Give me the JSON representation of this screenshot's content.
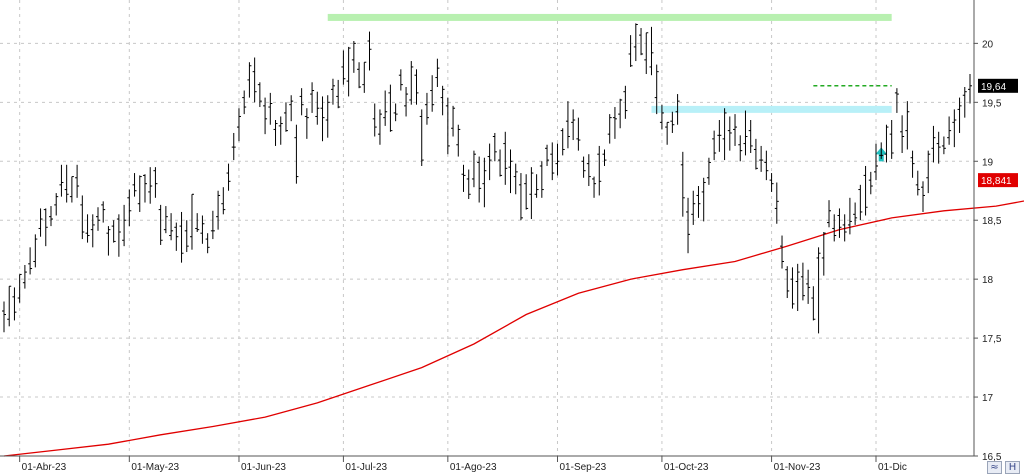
{
  "chart_data": {
    "type": "ohlc-bar",
    "title": "",
    "xlabel": "",
    "ylabel": "",
    "ylim": [
      16.5,
      20.3
    ],
    "y_ticks": [
      "16,5",
      "17",
      "17,5",
      "18",
      "18,5",
      "19",
      "19,5",
      "20"
    ],
    "y_tick_values": [
      16.5,
      17,
      17.5,
      18,
      18.5,
      19,
      19.5,
      20
    ],
    "x_ticks": [
      "01-Abr-23",
      "01-May-23",
      "01-Jun-23",
      "01-Jul-23",
      "01-Ago-23",
      "01-Sep-23",
      "01-Oct-23",
      "01-Nov-23",
      "01-Dic"
    ],
    "x_tick_index": [
      3,
      24,
      45,
      65,
      85,
      106,
      126,
      147,
      167
    ],
    "grid": true,
    "colors": {
      "price": "#000000",
      "moving_average": "#e00000",
      "resistance": "#b8f0b0",
      "support": "#b8f0f8",
      "last_price_tag": "#000000",
      "ma_tag": "#e00000",
      "arrow": "#20c0c0"
    },
    "price_tag": "19,64",
    "ma_tag": "18,841",
    "annotations": [
      {
        "kind": "horizontal-band",
        "color": "#b8f0b0",
        "y": 20.22,
        "from_index": 62,
        "to_index": 170
      },
      {
        "kind": "horizontal-band",
        "color": "#b8f0f8",
        "y": 19.44,
        "from_index": 124,
        "to_index": 170
      },
      {
        "kind": "dashed-line",
        "color": "#22aa22",
        "y": 19.64,
        "from_index": 155,
        "to_index": 170
      },
      {
        "kind": "up-arrow",
        "color": "#20c0c0",
        "index": 168,
        "y": 19.05
      }
    ],
    "ohlc": [
      [
        17.73,
        17.81,
        17.55,
        17.7
      ],
      [
        17.66,
        17.94,
        17.6,
        17.94
      ],
      [
        17.85,
        17.93,
        17.65,
        17.72
      ],
      [
        17.84,
        18.04,
        17.8,
        18.04
      ],
      [
        17.97,
        18.12,
        17.92,
        18.06
      ],
      [
        18.13,
        18.27,
        18.04,
        18.09
      ],
      [
        18.15,
        18.38,
        18.1,
        18.34
      ],
      [
        18.43,
        18.6,
        18.36,
        18.51
      ],
      [
        18.59,
        18.6,
        18.28,
        18.44
      ],
      [
        18.53,
        18.62,
        18.45,
        18.51
      ],
      [
        18.63,
        18.73,
        18.54,
        18.7
      ],
      [
        18.8,
        18.97,
        18.7,
        18.82
      ],
      [
        18.76,
        18.97,
        18.65,
        18.72
      ],
      [
        18.7,
        18.87,
        18.65,
        18.87
      ],
      [
        18.86,
        18.97,
        18.69,
        18.79
      ],
      [
        18.63,
        18.71,
        18.34,
        18.4
      ],
      [
        18.39,
        18.55,
        18.31,
        18.37
      ],
      [
        18.42,
        18.55,
        18.27,
        18.46
      ],
      [
        18.53,
        18.61,
        18.41,
        18.5
      ],
      [
        18.63,
        18.66,
        18.48,
        18.59
      ],
      [
        18.39,
        18.45,
        18.2,
        18.42
      ],
      [
        18.45,
        18.5,
        18.31,
        18.32
      ],
      [
        18.51,
        18.55,
        18.19,
        18.4
      ],
      [
        18.33,
        18.63,
        18.28,
        18.5
      ],
      [
        18.69,
        18.76,
        18.45,
        18.58
      ],
      [
        18.8,
        18.9,
        18.7,
        18.75
      ],
      [
        18.64,
        18.88,
        18.57,
        18.87
      ],
      [
        18.88,
        18.89,
        18.65,
        18.81
      ],
      [
        18.74,
        18.95,
        18.64,
        18.79
      ],
      [
        18.92,
        18.95,
        18.69,
        18.81
      ],
      [
        18.59,
        18.63,
        18.29,
        18.33
      ],
      [
        18.42,
        18.62,
        18.39,
        18.53
      ],
      [
        18.37,
        18.56,
        18.33,
        18.41
      ],
      [
        18.44,
        18.48,
        18.24,
        18.36
      ],
      [
        18.45,
        18.57,
        18.14,
        18.22
      ],
      [
        18.41,
        18.5,
        18.23,
        18.28
      ],
      [
        18.36,
        18.72,
        18.25,
        18.72
      ],
      [
        18.43,
        18.56,
        18.4,
        18.42
      ],
      [
        18.39,
        18.54,
        18.3,
        18.47
      ],
      [
        18.34,
        18.39,
        18.22,
        18.27
      ],
      [
        18.41,
        18.58,
        18.34,
        18.41
      ],
      [
        18.53,
        18.75,
        18.42,
        18.71
      ],
      [
        18.64,
        18.78,
        18.55,
        18.59
      ],
      [
        18.9,
        18.98,
        18.75,
        18.83
      ],
      [
        19.12,
        19.24,
        19.01,
        19.12
      ],
      [
        19.29,
        19.45,
        19.17,
        19.38
      ],
      [
        19.54,
        19.6,
        19.4,
        19.46
      ],
      [
        19.69,
        19.84,
        19.54,
        19.81
      ],
      [
        19.76,
        19.88,
        19.5,
        19.59
      ],
      [
        19.65,
        19.67,
        19.46,
        19.51
      ],
      [
        19.47,
        19.54,
        19.23,
        19.36
      ],
      [
        19.46,
        19.58,
        19.31,
        19.49
      ],
      [
        19.27,
        19.35,
        19.13,
        19.32
      ],
      [
        19.3,
        19.38,
        19.14,
        19.32
      ],
      [
        19.41,
        19.5,
        19.25,
        19.26
      ],
      [
        19.48,
        19.56,
        19.34,
        19.51
      ],
      [
        19.2,
        19.31,
        18.81,
        18.87
      ],
      [
        19.55,
        19.62,
        19.39,
        19.48
      ],
      [
        19.38,
        19.45,
        19.19,
        19.37
      ],
      [
        19.57,
        19.67,
        19.41,
        19.6
      ],
      [
        19.38,
        19.59,
        19.31,
        19.45
      ],
      [
        19.45,
        19.55,
        19.17,
        19.37
      ],
      [
        19.35,
        19.56,
        19.2,
        19.5
      ],
      [
        19.61,
        19.7,
        19.48,
        19.64
      ],
      [
        19.55,
        19.69,
        19.45,
        19.46
      ],
      [
        19.8,
        19.94,
        19.65,
        19.7
      ],
      [
        19.68,
        19.97,
        19.55,
        19.96
      ],
      [
        19.86,
        20.02,
        19.75,
        20.0
      ],
      [
        19.78,
        19.84,
        19.62,
        19.63
      ],
      [
        19.65,
        19.84,
        19.58,
        19.84
      ],
      [
        20.02,
        20.1,
        19.77,
        19.95
      ],
      [
        19.36,
        19.49,
        19.21,
        19.29
      ],
      [
        19.23,
        19.44,
        19.14,
        19.4
      ],
      [
        19.37,
        19.6,
        19.3,
        19.42
      ],
      [
        19.58,
        19.65,
        19.25,
        19.26
      ],
      [
        19.41,
        19.49,
        19.34,
        19.4
      ],
      [
        19.73,
        19.78,
        19.6,
        19.65
      ],
      [
        19.47,
        19.63,
        19.38,
        19.57
      ],
      [
        19.52,
        19.85,
        19.48,
        19.8
      ],
      [
        19.73,
        19.78,
        19.48,
        19.58
      ],
      [
        19.38,
        19.44,
        18.96,
        19.01
      ],
      [
        19.48,
        19.58,
        19.31,
        19.37
      ],
      [
        19.6,
        19.73,
        19.42,
        19.48
      ],
      [
        19.71,
        19.87,
        19.63,
        19.79
      ],
      [
        19.54,
        19.64,
        19.39,
        19.61
      ],
      [
        19.47,
        19.54,
        19.06,
        19.13
      ],
      [
        19.28,
        19.47,
        19.21,
        19.45
      ],
      [
        19.14,
        19.31,
        19.04,
        19.27
      ],
      [
        18.89,
        18.97,
        18.74,
        18.88
      ],
      [
        18.85,
        18.93,
        18.68,
        18.72
      ],
      [
        18.85,
        19.09,
        18.78,
        19.06
      ],
      [
        18.99,
        19.04,
        18.65,
        18.77
      ],
      [
        18.81,
        19.03,
        18.61,
        18.92
      ],
      [
        19.04,
        19.15,
        18.84,
        19.01
      ],
      [
        19.21,
        19.24,
        19.0,
        19.08
      ],
      [
        19.01,
        19.1,
        18.87,
        18.88
      ],
      [
        19.15,
        19.25,
        18.8,
        18.94
      ],
      [
        18.95,
        19.1,
        18.73,
        19.0
      ],
      [
        18.87,
        18.98,
        18.72,
        18.91
      ],
      [
        18.8,
        18.9,
        18.5,
        18.52
      ],
      [
        18.81,
        18.89,
        18.59,
        18.6
      ],
      [
        18.72,
        18.95,
        18.51,
        18.9
      ],
      [
        18.72,
        18.89,
        18.69,
        18.76
      ],
      [
        18.96,
        19.0,
        18.69,
        18.76
      ],
      [
        19.11,
        19.14,
        18.96,
        19.01
      ],
      [
        19.06,
        19.16,
        18.84,
        18.9
      ],
      [
        18.98,
        19.15,
        18.88,
        19.0
      ],
      [
        19.26,
        19.28,
        19.05,
        19.1
      ],
      [
        19.34,
        19.51,
        19.11,
        19.21
      ],
      [
        19.33,
        19.44,
        19.18,
        19.35
      ],
      [
        19.19,
        19.37,
        19.09,
        19.18
      ],
      [
        19.0,
        19.04,
        18.86,
        18.92
      ],
      [
        18.98,
        19.06,
        18.79,
        18.87
      ],
      [
        18.85,
        18.87,
        18.69,
        18.81
      ],
      [
        19.06,
        19.13,
        18.71,
        18.83
      ],
      [
        19.06,
        19.1,
        18.96,
        19.01
      ],
      [
        19.23,
        19.4,
        19.15,
        19.37
      ],
      [
        19.37,
        19.46,
        19.19,
        19.36
      ],
      [
        19.4,
        19.53,
        19.28,
        19.52
      ],
      [
        19.59,
        19.64,
        19.36,
        19.43
      ],
      [
        19.91,
        20.07,
        19.8,
        19.81
      ],
      [
        19.97,
        20.17,
        19.85,
        20.16
      ],
      [
        20.07,
        20.13,
        19.9,
        19.91
      ],
      [
        19.86,
        20.09,
        19.74,
        20.09
      ],
      [
        19.8,
        20.14,
        19.73,
        19.92
      ],
      [
        19.54,
        19.82,
        19.4,
        19.76
      ],
      [
        19.33,
        19.48,
        19.27,
        19.41
      ],
      [
        19.29,
        19.33,
        19.14,
        19.33
      ],
      [
        19.34,
        19.42,
        19.24,
        19.31
      ],
      [
        19.42,
        19.57,
        19.31,
        19.51
      ],
      [
        18.97,
        19.08,
        18.53,
        18.69
      ],
      [
        18.57,
        18.69,
        18.22,
        18.38
      ],
      [
        18.55,
        18.75,
        18.46,
        18.64
      ],
      [
        18.71,
        18.79,
        18.52,
        18.64
      ],
      [
        18.74,
        18.86,
        18.49,
        18.82
      ],
      [
        18.86,
        19.03,
        18.8,
        18.99
      ],
      [
        19.19,
        19.26,
        19.01,
        19.07
      ],
      [
        19.22,
        19.35,
        19.08,
        19.22
      ],
      [
        19.19,
        19.45,
        19.01,
        19.41
      ],
      [
        19.26,
        19.38,
        19.09,
        19.24
      ],
      [
        19.27,
        19.4,
        19.13,
        19.29
      ],
      [
        19.14,
        19.22,
        19.0,
        19.09
      ],
      [
        19.15,
        19.43,
        19.05,
        19.21
      ],
      [
        19.26,
        19.35,
        19.07,
        19.13
      ],
      [
        19.1,
        19.19,
        18.93,
        18.94
      ],
      [
        19.01,
        19.13,
        18.91,
        19.01
      ],
      [
        18.99,
        19.09,
        18.84,
        18.92
      ],
      [
        18.84,
        18.9,
        18.74,
        18.81
      ],
      [
        18.6,
        18.82,
        18.47,
        18.66
      ],
      [
        18.28,
        18.37,
        18.09,
        18.15
      ],
      [
        18.08,
        18.11,
        17.84,
        17.9
      ],
      [
        18.0,
        18.1,
        17.75,
        17.79
      ],
      [
        17.98,
        18.13,
        17.73,
        18.06
      ],
      [
        18.02,
        18.14,
        17.82,
        17.86
      ],
      [
        17.96,
        18.08,
        17.79,
        17.93
      ],
      [
        17.84,
        17.94,
        17.65,
        17.66
      ],
      [
        18.18,
        18.27,
        17.54,
        18.22
      ],
      [
        18.18,
        18.4,
        18.03,
        18.39
      ],
      [
        18.48,
        18.67,
        18.44,
        18.58
      ],
      [
        18.43,
        18.55,
        18.32,
        18.37
      ],
      [
        18.54,
        18.6,
        18.35,
        18.44
      ],
      [
        18.46,
        18.55,
        18.32,
        18.4
      ],
      [
        18.46,
        18.69,
        18.38,
        18.49
      ],
      [
        18.55,
        18.65,
        18.46,
        18.52
      ],
      [
        18.76,
        18.8,
        18.5,
        18.57
      ],
      [
        18.88,
        18.96,
        18.54,
        18.61
      ],
      [
        18.84,
        18.91,
        18.72,
        18.79
      ],
      [
        18.91,
        19.15,
        18.84,
        18.96
      ],
      [
        19.05,
        19.16,
        19.02,
        19.05
      ],
      [
        19.06,
        19.31,
        18.99,
        19.29
      ],
      [
        19.23,
        19.35,
        19.02,
        19.07
      ],
      [
        19.58,
        19.62,
        19.41,
        19.57
      ],
      [
        19.25,
        19.39,
        19.07,
        19.21
      ],
      [
        19.26,
        19.51,
        19.1,
        19.42
      ],
      [
        19.03,
        19.09,
        18.86,
        18.98
      ],
      [
        18.8,
        18.92,
        18.71,
        18.76
      ],
      [
        18.78,
        18.83,
        18.57,
        18.71
      ],
      [
        18.86,
        19.09,
        18.73,
        19.06
      ],
      [
        19.11,
        19.3,
        18.99,
        19.2
      ],
      [
        19.15,
        19.25,
        18.98,
        19.12
      ],
      [
        19.13,
        19.21,
        19.06,
        19.11
      ],
      [
        19.2,
        19.38,
        19.14,
        19.26
      ],
      [
        19.33,
        19.44,
        19.12,
        19.35
      ],
      [
        19.44,
        19.54,
        19.24,
        19.47
      ],
      [
        19.56,
        19.63,
        19.37,
        19.59
      ],
      [
        19.61,
        19.74,
        19.49,
        19.64
      ]
    ],
    "moving_average": [
      [
        0,
        16.5
      ],
      [
        10,
        16.55
      ],
      [
        20,
        16.6
      ],
      [
        30,
        16.68
      ],
      [
        40,
        16.75
      ],
      [
        50,
        16.83
      ],
      [
        60,
        16.95
      ],
      [
        70,
        17.1
      ],
      [
        80,
        17.25
      ],
      [
        90,
        17.45
      ],
      [
        100,
        17.7
      ],
      [
        110,
        17.88
      ],
      [
        120,
        18.0
      ],
      [
        130,
        18.08
      ],
      [
        140,
        18.15
      ],
      [
        150,
        18.28
      ],
      [
        160,
        18.42
      ],
      [
        170,
        18.52
      ],
      [
        180,
        18.58
      ],
      [
        190,
        18.62
      ],
      [
        200,
        18.7
      ],
      [
        205,
        18.84
      ]
    ]
  }
}
